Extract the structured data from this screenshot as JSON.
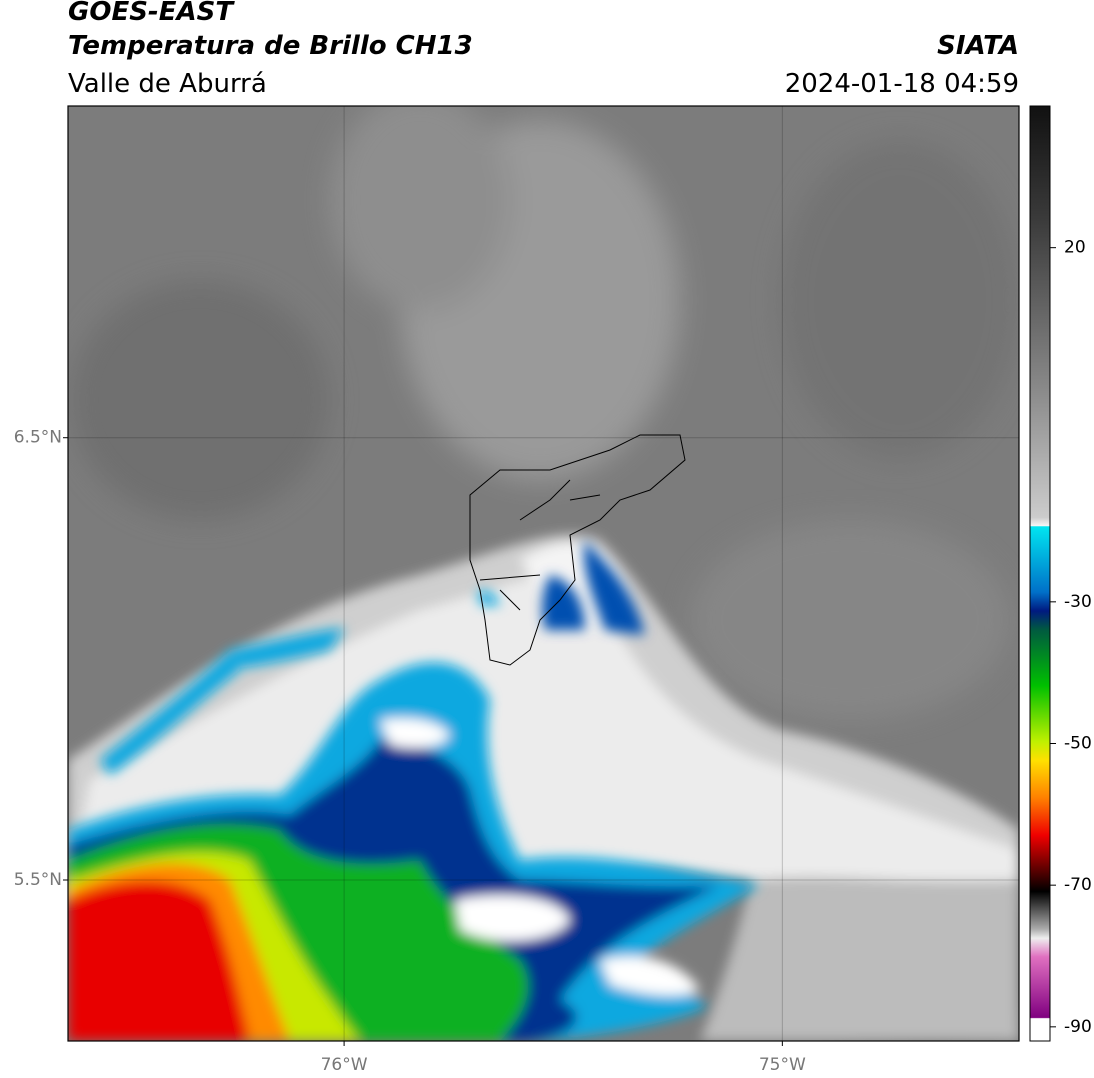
{
  "header": {
    "satellite": "GOES-EAST",
    "product": "Temperatura de Brillo CH13",
    "region": "Valle de Aburrá",
    "source": "SIATA",
    "datetime": "2024-01-18 04:59"
  },
  "map": {
    "latlim": [
      5.136,
      7.25
    ],
    "lonlim": [
      -76.63,
      -74.46
    ],
    "lat_ticks": [
      {
        "value": 6.5,
        "label": "6.5°N"
      },
      {
        "value": 5.5,
        "label": "5.5°N"
      }
    ],
    "lon_ticks": [
      {
        "value": -76,
        "label": "76°W"
      },
      {
        "value": -75,
        "label": "75°W"
      }
    ]
  },
  "colorbar": {
    "lim": [
      -92,
      40
    ],
    "ticks": [
      20,
      -30,
      -50,
      -70,
      -90
    ]
  }
}
